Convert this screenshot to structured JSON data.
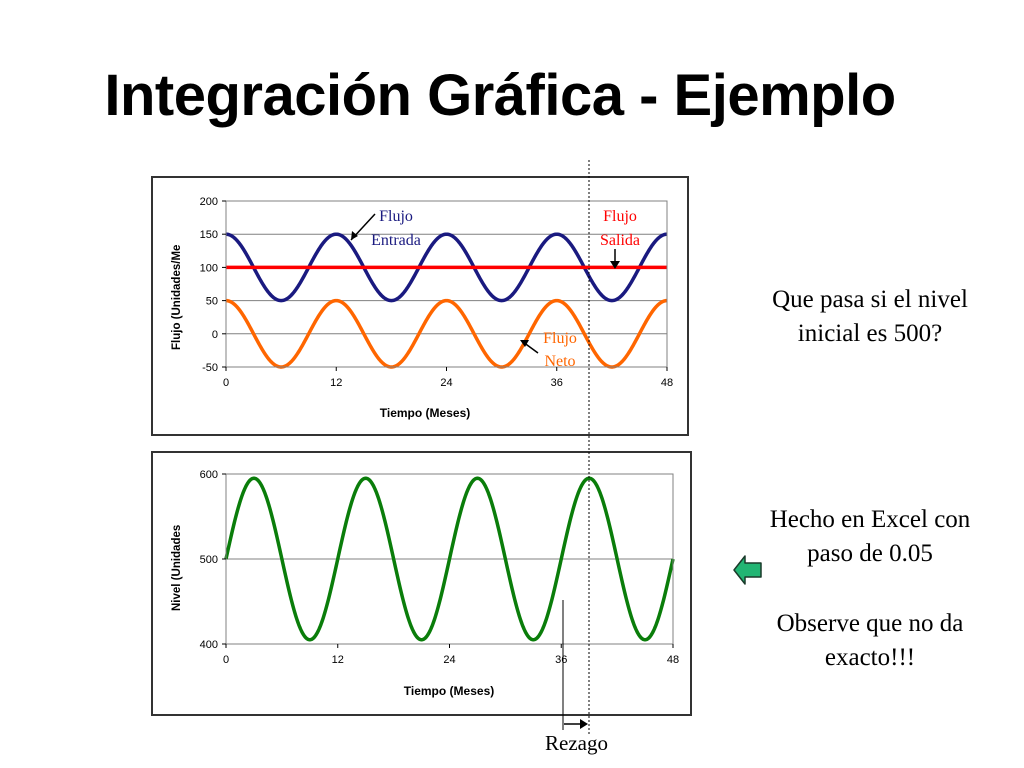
{
  "slide": {
    "title": "Integración Gráfica - Ejemplo",
    "question": "Que pasa si el nivel inicial es 500?",
    "note_excel": "Hecho en Excel con paso de 0.05",
    "note_observe": "Observe que no da exacto!!!",
    "lag_label": "Rezago",
    "back_arrow_icon": "back-arrow-icon",
    "back_arrow_color": "#22b573"
  },
  "chart_data": [
    {
      "type": "line",
      "title": "",
      "xlabel": "Tiempo (Meses)",
      "ylabel": "Flujo (Unidades/Me",
      "xlim": [
        0,
        48
      ],
      "ylim": [
        -50,
        200
      ],
      "x_ticks": [
        "0",
        "12",
        "24",
        "36",
        "48"
      ],
      "y_ticks": [
        "-50",
        "0",
        "50",
        "100",
        "150",
        "200"
      ],
      "grid": true,
      "series": [
        {
          "name": "Flujo Entrada",
          "color": "#1a1a80",
          "kind": "sine",
          "mean": 100,
          "amplitude": 50,
          "period": 12,
          "peak_at": 0
        },
        {
          "name": "Flujo Salida",
          "color": "#ff0000",
          "kind": "constant",
          "value": 100
        },
        {
          "name": "Flujo Neto",
          "color": "#ff6600",
          "kind": "sine",
          "mean": 0,
          "amplitude": 50,
          "period": 12,
          "peak_at": 0
        }
      ],
      "annotations": [
        {
          "label_line1": "Flujo",
          "label_line2": "Entrada",
          "color": "#1a1a80"
        },
        {
          "label_line1": "Flujo",
          "label_line2": "Salida",
          "color": "#ff0000"
        },
        {
          "label_line1": "Flujo",
          "label_line2": "Neto",
          "color": "#ff6600"
        }
      ]
    },
    {
      "type": "line",
      "title": "",
      "xlabel": "Tiempo (Meses)",
      "ylabel": "Nivel (Unidades",
      "xlim": [
        0,
        48
      ],
      "ylim": [
        400,
        600
      ],
      "x_ticks": [
        "0",
        "12",
        "24",
        "36",
        "48"
      ],
      "y_ticks": [
        "400",
        "500",
        "600"
      ],
      "grid": true,
      "series": [
        {
          "name": "Nivel",
          "color": "#0a7d0a",
          "kind": "sine",
          "mean": 500,
          "amplitude": 95,
          "period": 12,
          "peak_at": 3,
          "clip_max": 600
        }
      ]
    }
  ]
}
